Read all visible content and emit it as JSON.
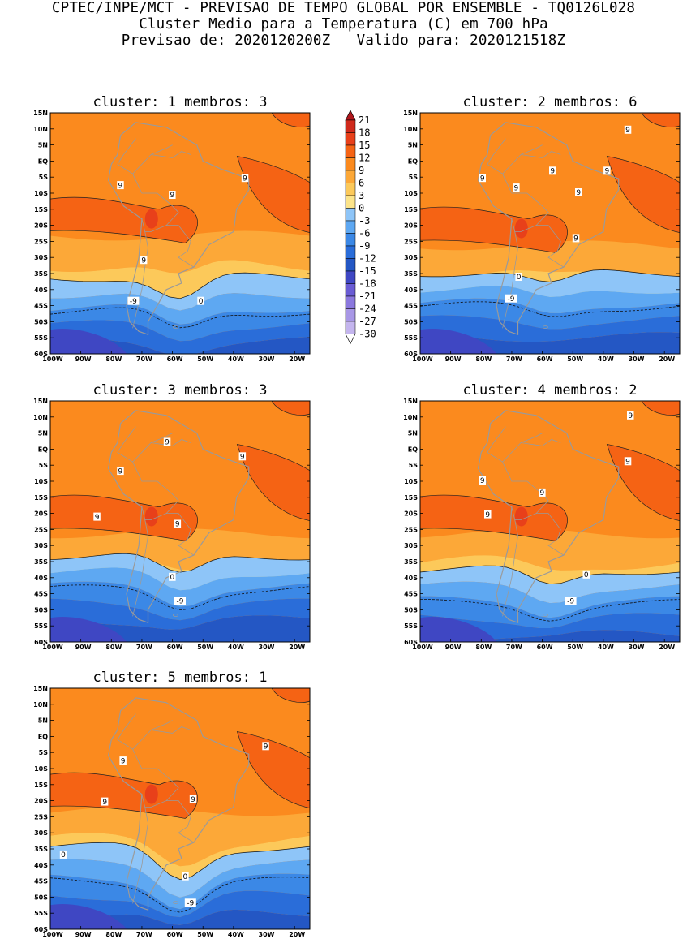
{
  "header": {
    "line1": "CPTEC/INPE/MCT - PREVISAO DE TEMPO GLOBAL POR ENSEMBLE - TQ0126L028",
    "line2": "Cluster Medio para a Temperatura (C) em 700 hPa",
    "line3": "Previsao de: 2020120200Z   Valido para: 2020121518Z"
  },
  "lat_ticks": [
    "15N",
    "10N",
    "5N",
    "EQ",
    "5S",
    "10S",
    "15S",
    "20S",
    "25S",
    "30S",
    "35S",
    "40S",
    "45S",
    "50S",
    "55S",
    "60S"
  ],
  "lon_ticks": [
    "100W",
    "90W",
    "80W",
    "70W",
    "60W",
    "50W",
    "40W",
    "30W",
    "20W"
  ],
  "colorbar": {
    "labels": [
      "21",
      "18",
      "15",
      "12",
      "9",
      "6",
      "3",
      "0",
      "-3",
      "-6",
      "-9",
      "-12",
      "-15",
      "-18",
      "-21",
      "-24",
      "-27",
      "-30"
    ],
    "colors": [
      "#b0171c",
      "#cf2a1c",
      "#e8401a",
      "#f56314",
      "#fb8a1e",
      "#fca838",
      "#fcc95a",
      "#fce48a",
      "#8ec5f8",
      "#5ea8f2",
      "#3b88e6",
      "#2a6dd9",
      "#2457c4",
      "#3f47c3",
      "#6a5cd4",
      "#8b78de",
      "#a897e6",
      "#c4b5ee",
      "#ffffff"
    ]
  },
  "panels": [
    {
      "title": "cluster: 1   membros: 3",
      "labels": [
        "9",
        "9",
        "9",
        "9",
        "0",
        "-9"
      ]
    },
    {
      "title": "cluster: 2   membros: 6",
      "labels": [
        "9",
        "9",
        "9",
        "9",
        "9",
        "9",
        "9",
        "0",
        "-9"
      ]
    },
    {
      "title": "cluster: 3   membros: 3",
      "labels": [
        "9",
        "9",
        "9",
        "9",
        "9",
        "0",
        "-9"
      ]
    },
    {
      "title": "cluster: 4   membros: 2",
      "labels": [
        "9",
        "9",
        "9",
        "9",
        "9",
        "0",
        "-9"
      ]
    },
    {
      "title": "cluster: 5   membros: 1",
      "labels": [
        "9",
        "9",
        "9",
        "9",
        "0",
        "0",
        "-9"
      ]
    }
  ]
}
